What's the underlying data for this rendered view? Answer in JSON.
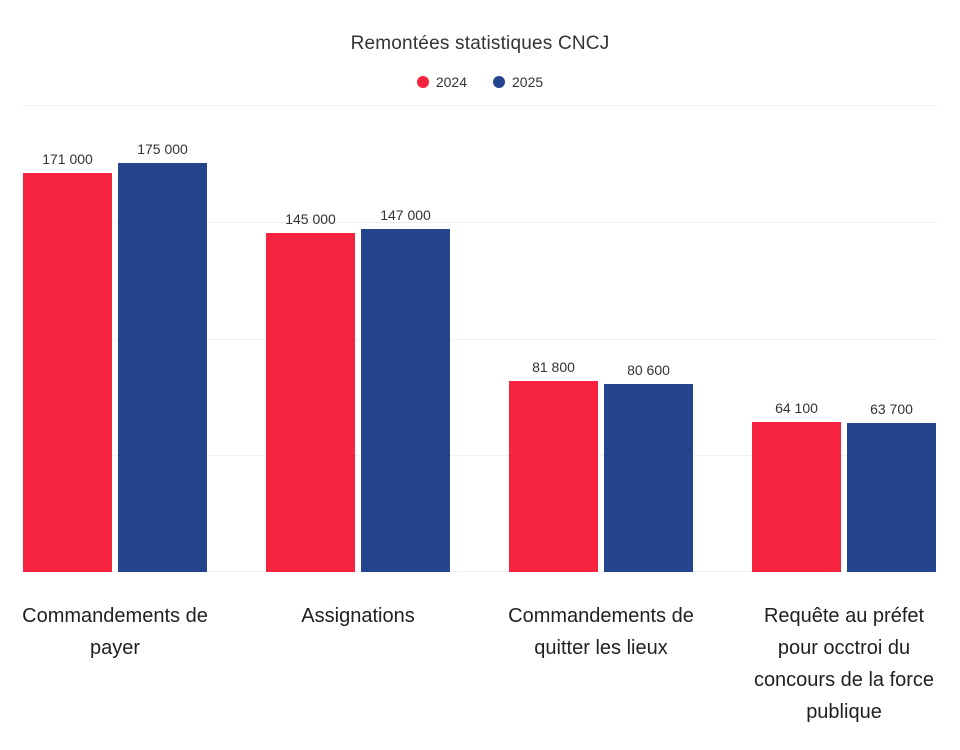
{
  "chart_data": {
    "type": "bar",
    "title": "Remontées statistiques CNCJ",
    "categories": [
      "Commandements de payer",
      "Assignations",
      "Commandements de quitter les lieux",
      "Requête au préfet pour occtroi du concours de la force publique"
    ],
    "series": [
      {
        "name": "2024",
        "color": "#F5233D",
        "values": [
          171000,
          145000,
          81800,
          64100
        ],
        "value_labels": [
          "171 000",
          "145 000",
          "81 800",
          "64 100"
        ]
      },
      {
        "name": "2025",
        "color": "#24458D",
        "values": [
          175000,
          147000,
          80600,
          63700
        ],
        "value_labels": [
          "175 000",
          "147 000",
          "80 600",
          "63 700"
        ]
      }
    ],
    "xlabel": "",
    "ylabel": "",
    "ylim": [
      0,
      200000
    ],
    "gridline_step": 50000,
    "grid": "horizontal-only, no y-axis tick labels",
    "legend_position": "top-center",
    "colors": {
      "background": "#ffffff",
      "text": "#333333",
      "category_text": "#212121",
      "gridline": "#f1f1f1"
    }
  }
}
